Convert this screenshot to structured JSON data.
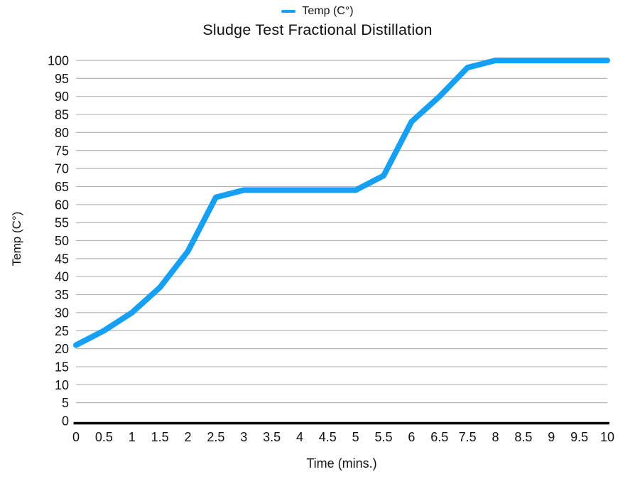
{
  "page": {
    "background": "#ffffff"
  },
  "chart_data": {
    "type": "line",
    "title": "Sludge Test Fractional Distillation",
    "xlabel": "Time (mins.)",
    "ylabel": "Temp (C°)",
    "legend_entries": [
      "Temp (C°)"
    ],
    "legend_position": "top-center",
    "grid": "horizontal-only",
    "categories": [
      "0",
      "0.5",
      "1",
      "1.5",
      "2",
      "2.5",
      "3",
      "3.5",
      "4",
      "4.5",
      "5",
      "5.5",
      "6",
      "6.5",
      "7.5",
      "8",
      "8.5",
      "9",
      "9.5",
      "10"
    ],
    "series": [
      {
        "name": "Temp (C°)",
        "values": [
          21,
          25,
          30,
          37,
          47,
          62,
          64,
          64,
          64,
          64,
          64,
          68,
          83,
          90,
          98,
          100,
          100,
          100,
          100,
          100
        ]
      }
    ],
    "ylim": [
      0,
      100
    ],
    "yticks": [
      0,
      5,
      10,
      15,
      20,
      25,
      30,
      35,
      40,
      45,
      50,
      55,
      60,
      65,
      70,
      75,
      80,
      85,
      90,
      95,
      100
    ],
    "colors": {
      "line": "#16a0f3",
      "gridline": "#b5b5b5",
      "axis": "#000000",
      "text": "#111111"
    }
  }
}
